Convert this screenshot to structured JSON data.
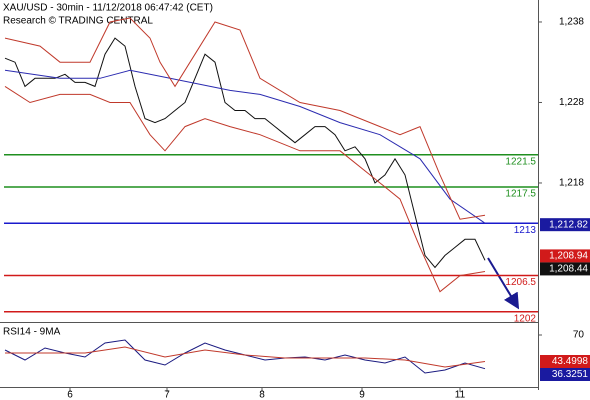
{
  "chart_data": [
    {
      "type": "line",
      "title": "XAU/USD - 30min - 11/12/2018 06:47:42 (CET)",
      "subtitle": "Research © TRADING CENTRAL",
      "xlim": [
        0,
        538
      ],
      "ylim": [
        1200.73,
        1240.73
      ],
      "yticks": [
        {
          "value": 1238,
          "label": "1,238"
        },
        {
          "value": 1228,
          "label": "1,228"
        },
        {
          "value": 1218,
          "label": "1,218"
        }
      ],
      "xticks": [
        {
          "value": 70,
          "label": "6"
        },
        {
          "value": 167,
          "label": "7"
        },
        {
          "value": 262,
          "label": "8"
        },
        {
          "value": 362,
          "label": "9"
        },
        {
          "value": 460,
          "label": "11"
        }
      ],
      "series": [
        {
          "color": "#111111",
          "x": [
            5,
            15,
            25,
            35,
            45,
            55,
            65,
            75,
            85,
            95,
            105,
            115,
            125,
            135,
            145,
            155,
            165,
            175,
            185,
            195,
            205,
            215,
            225,
            235,
            245,
            255,
            265,
            275,
            285,
            295,
            305,
            315,
            325,
            335,
            345,
            355,
            365,
            375,
            385,
            395,
            405,
            415,
            425,
            435,
            445,
            455,
            465,
            475,
            485
          ],
          "values": [
            1233.5,
            1233,
            1230,
            1231,
            1231,
            1231,
            1231.5,
            1230.5,
            1230.5,
            1230,
            1234,
            1236,
            1235,
            1230,
            1226,
            1225.5,
            1226,
            1227,
            1228,
            1231,
            1234,
            1233,
            1228,
            1227,
            1227,
            1226,
            1226,
            1225,
            1224,
            1223,
            1224,
            1225,
            1225,
            1224,
            1222,
            1222.5,
            1221,
            1218,
            1219,
            1221,
            1219,
            1214,
            1209,
            1207.5,
            1209,
            1210,
            1211,
            1211,
            1208.4
          ]
        },
        {
          "color": "#2b2bb0",
          "x": [
            5,
            60,
            100,
            130,
            170,
            230,
            260,
            300,
            340,
            380,
            420,
            450,
            485
          ],
          "values": [
            1232,
            1231,
            1231,
            1232,
            1231,
            1229.5,
            1229,
            1227.5,
            1225.5,
            1224,
            1221,
            1216,
            1213
          ]
        },
        {
          "color": "#c0392b",
          "x": [
            5,
            40,
            60,
            90,
            110,
            130,
            150,
            160,
            175,
            195,
            215,
            240,
            260,
            300,
            340,
            380,
            400,
            420,
            440,
            460,
            485
          ],
          "values": [
            1236,
            1235,
            1233,
            1233,
            1238,
            1238.5,
            1236,
            1233,
            1230,
            1234,
            1238,
            1237,
            1231,
            1228,
            1227,
            1225,
            1224,
            1225,
            1219,
            1213.5,
            1214
          ]
        },
        {
          "color": "#c0392b",
          "x": [
            5,
            30,
            60,
            90,
            110,
            130,
            150,
            165,
            185,
            205,
            230,
            260,
            300,
            340,
            370,
            400,
            420,
            440,
            460,
            485
          ],
          "values": [
            1230,
            1228,
            1229,
            1229,
            1228,
            1228,
            1224,
            1222,
            1225,
            1226,
            1225,
            1224,
            1222,
            1222,
            1219,
            1216,
            1210,
            1204.5,
            1206.5,
            1207
          ]
        }
      ],
      "levels": [
        {
          "value": 1221.5,
          "color": "#1f8f1f"
        },
        {
          "value": 1217.5,
          "color": "#1f8f1f"
        },
        {
          "value": 1213,
          "color": "#1a1acc"
        },
        {
          "value": 1206.5,
          "color": "#d11a1a"
        },
        {
          "value": 1202,
          "color": "#d11a1a"
        }
      ],
      "tags": [
        {
          "value": 1212.82,
          "label": "1,212.82",
          "color": "#1a1aa0"
        },
        {
          "value": 1208.94,
          "label": "1,208.94",
          "color": "#d11a1a"
        },
        {
          "value": 1208.44,
          "label": "1,208.44",
          "color": "#111111"
        }
      ]
    },
    {
      "type": "line",
      "title": "RSI14 - 9MA",
      "xlim": [
        0,
        538
      ],
      "ylim": [
        20,
        80
      ],
      "yticks": [
        70
      ],
      "series": [
        {
          "color": "#1a1a80",
          "x": [
            5,
            25,
            45,
            65,
            85,
            105,
            125,
            145,
            165,
            185,
            205,
            225,
            245,
            265,
            285,
            305,
            325,
            345,
            365,
            385,
            405,
            425,
            445,
            465,
            485
          ],
          "values": [
            55,
            45,
            57,
            52,
            48,
            62,
            65,
            45,
            40,
            52,
            62,
            55,
            50,
            45,
            47,
            48,
            45,
            50,
            45,
            42,
            48,
            32,
            35,
            42,
            36.3251
          ]
        },
        {
          "color": "#c0392b",
          "x": [
            5,
            45,
            85,
            125,
            165,
            205,
            245,
            285,
            325,
            365,
            405,
            445,
            485
          ],
          "values": [
            52,
            52,
            52,
            58,
            48,
            55,
            50,
            47,
            47,
            47,
            45,
            38,
            43.4998
          ]
        }
      ],
      "tags": [
        {
          "value": 43.4998,
          "color": "#d11a1a"
        },
        {
          "value": 36.3251,
          "color": "#1a1aa0"
        }
      ]
    }
  ]
}
